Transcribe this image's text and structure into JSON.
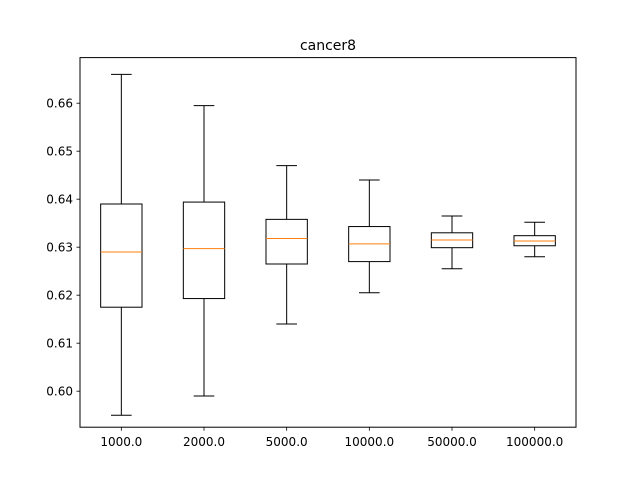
{
  "chart_data": {
    "type": "boxplot",
    "title": "cancer8",
    "xlabel": "",
    "ylabel": "",
    "categories": [
      "1000.0",
      "2000.0",
      "5000.0",
      "10000.0",
      "50000.0",
      "100000.0"
    ],
    "boxes": [
      {
        "whislo": 0.595,
        "q1": 0.6175,
        "med": 0.629,
        "q3": 0.639,
        "whishi": 0.666
      },
      {
        "whislo": 0.599,
        "q1": 0.6193,
        "med": 0.6297,
        "q3": 0.6394,
        "whishi": 0.6595
      },
      {
        "whislo": 0.614,
        "q1": 0.6265,
        "med": 0.6318,
        "q3": 0.6358,
        "whishi": 0.647
      },
      {
        "whislo": 0.6205,
        "q1": 0.627,
        "med": 0.6307,
        "q3": 0.6343,
        "whishi": 0.644
      },
      {
        "whislo": 0.6255,
        "q1": 0.6299,
        "med": 0.6315,
        "q3": 0.633,
        "whishi": 0.6365
      },
      {
        "whislo": 0.628,
        "q1": 0.6303,
        "med": 0.6313,
        "q3": 0.6324,
        "whishi": 0.6352
      }
    ],
    "ylim": [
      0.5925,
      0.6695
    ],
    "yticks": [
      0.6,
      0.61,
      0.62,
      0.63,
      0.64,
      0.65,
      0.66
    ],
    "ytick_labels": [
      "0.60",
      "0.61",
      "0.62",
      "0.63",
      "0.64",
      "0.65",
      "0.66"
    ],
    "grid": false,
    "colors": {
      "box": "#000000",
      "median": "#ff7f0e"
    }
  }
}
